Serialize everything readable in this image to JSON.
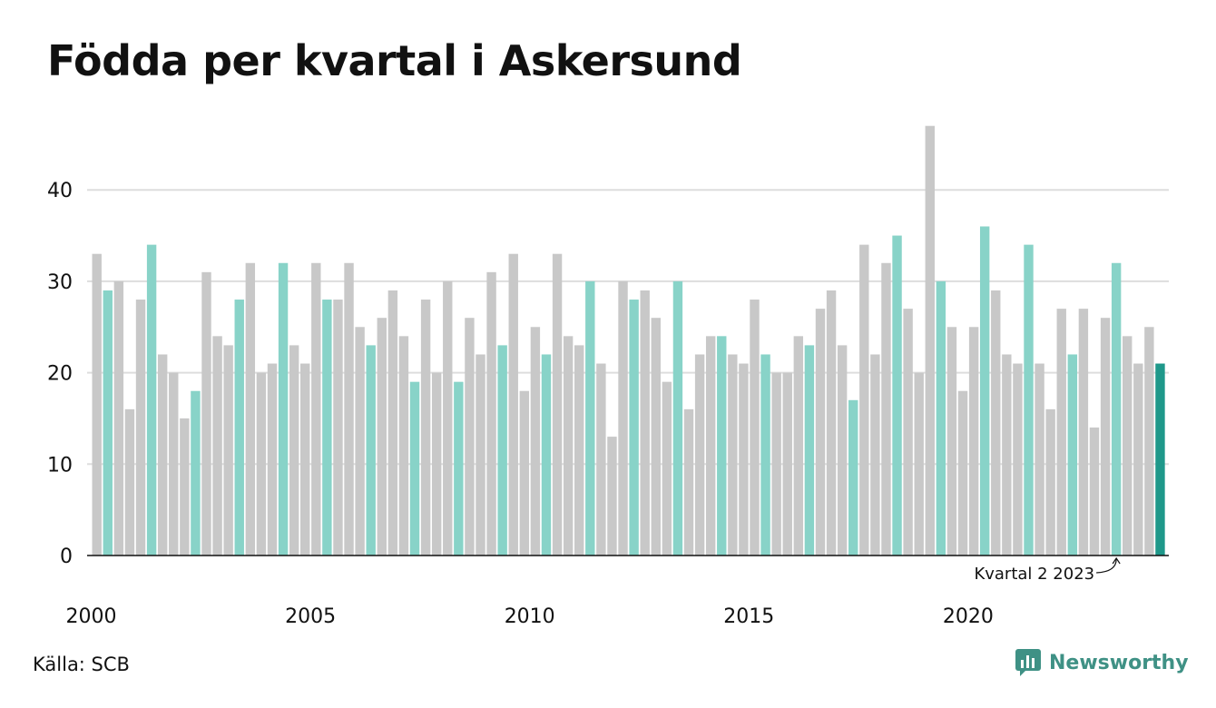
{
  "page": {
    "title": "Födda per kvartal i Askersund"
  },
  "source": "Källa: SCB",
  "logo": {
    "text": "Newsworthy",
    "icon": "bar-chart-icon"
  },
  "colors": {
    "other_quarter": "#c8c8c8",
    "q2": "#88d3c8",
    "latest": "#1f988a",
    "grid": "#dddddd",
    "axis": "#111111",
    "text": "#111111",
    "brand": "#3f9185"
  },
  "chart_data": {
    "type": "bar",
    "title": "Födda per kvartal i Askersund",
    "xlabel": "",
    "ylabel": "",
    "ylim": [
      0,
      47
    ],
    "yticks": [
      0,
      10,
      20,
      30,
      40
    ],
    "grid": true,
    "x_tick_labels": [
      "2000",
      "2005",
      "2010",
      "2015",
      "2020"
    ],
    "start_quarter": "2000 Q1",
    "end_quarter": "2024 Q2",
    "highlight_quarter": "Q2",
    "values": [
      33,
      29,
      30,
      16,
      28,
      34,
      22,
      20,
      15,
      18,
      31,
      24,
      23,
      28,
      32,
      20,
      21,
      32,
      23,
      21,
      32,
      28,
      28,
      32,
      25,
      23,
      26,
      29,
      24,
      19,
      28,
      20,
      30,
      19,
      26,
      22,
      31,
      23,
      33,
      18,
      25,
      22,
      33,
      24,
      23,
      30,
      21,
      13,
      30,
      28,
      29,
      26,
      19,
      30,
      16,
      22,
      24,
      24,
      22,
      21,
      28,
      22,
      20,
      20,
      24,
      23,
      27,
      29,
      23,
      17,
      34,
      22,
      32,
      35,
      27,
      20,
      47,
      30,
      25,
      18,
      25,
      36,
      29,
      22,
      21,
      34,
      21,
      16,
      27,
      22,
      27,
      14,
      26,
      32,
      24,
      21,
      25,
      21
    ],
    "annotation": {
      "label": "Kvartal 2 2023",
      "quarter": "2023 Q2"
    }
  }
}
